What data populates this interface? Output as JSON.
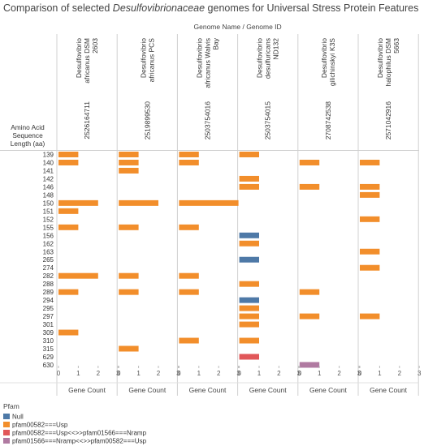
{
  "title": {
    "prefix": "Comparison of selected ",
    "italic": "Desulfovibrionaceae",
    "suffix": " genomes for Universal Stress Protein Features"
  },
  "colors": {
    "pfam00582===Usp": "#f28e2b",
    "Null": "#4e79a7",
    "pfam00582===Usp<<>>pfam01566===Nramp": "#e15759",
    "pfam01566===Nramp<<>>pfam00582===Usp": "#b07aa1"
  },
  "chart_data": {
    "type": "bar",
    "orientation": "horizontal",
    "column_header": "Genome Name  /  Genome ID",
    "row_header": [
      "Amino Acid",
      "Sequence",
      "Length (aa)"
    ],
    "categories": [
      "139",
      "140",
      "141",
      "142",
      "146",
      "148",
      "150",
      "151",
      "152",
      "155",
      "156",
      "162",
      "163",
      "265",
      "274",
      "282",
      "288",
      "289",
      "294",
      "295",
      "297",
      "301",
      "309",
      "310",
      "315",
      "629",
      "630"
    ],
    "xlabel": "Gene Count",
    "xlim": [
      0,
      3
    ],
    "xticks": [
      0,
      1,
      2,
      3
    ],
    "grid": false,
    "legend": {
      "title": "Pfam",
      "position": "bottom-left",
      "items": [
        "Null",
        "pfam00582===Usp",
        "pfam00582===Usp<<>>pfam01566===Nramp",
        "pfam01566===Nramp<<>>pfam00582===Usp"
      ]
    },
    "panels": [
      {
        "genome_name": [
          "Desulfovibrio",
          "africanus DSM",
          "2603"
        ],
        "genome_id": "2526164711",
        "bars": [
          {
            "length": "139",
            "value": 1,
            "pfam": "pfam00582===Usp"
          },
          {
            "length": "140",
            "value": 1,
            "pfam": "pfam00582===Usp"
          },
          {
            "length": "150",
            "value": 2,
            "pfam": "pfam00582===Usp"
          },
          {
            "length": "151",
            "value": 1,
            "pfam": "pfam00582===Usp"
          },
          {
            "length": "155",
            "value": 1,
            "pfam": "pfam00582===Usp"
          },
          {
            "length": "282",
            "value": 2,
            "pfam": "pfam00582===Usp"
          },
          {
            "length": "289",
            "value": 1,
            "pfam": "pfam00582===Usp"
          },
          {
            "length": "309",
            "value": 1,
            "pfam": "pfam00582===Usp"
          }
        ]
      },
      {
        "genome_name": [
          "Desulfovibrio",
          "africanus PCS"
        ],
        "genome_id": "2519899530",
        "bars": [
          {
            "length": "139",
            "value": 1,
            "pfam": "pfam00582===Usp"
          },
          {
            "length": "140",
            "value": 1,
            "pfam": "pfam00582===Usp"
          },
          {
            "length": "141",
            "value": 1,
            "pfam": "pfam00582===Usp"
          },
          {
            "length": "150",
            "value": 2,
            "pfam": "pfam00582===Usp"
          },
          {
            "length": "155",
            "value": 1,
            "pfam": "pfam00582===Usp"
          },
          {
            "length": "282",
            "value": 1,
            "pfam": "pfam00582===Usp"
          },
          {
            "length": "289",
            "value": 1,
            "pfam": "pfam00582===Usp"
          },
          {
            "length": "315",
            "value": 1,
            "pfam": "pfam00582===Usp"
          }
        ]
      },
      {
        "genome_name": [
          "Desulfovibrio",
          "africanus Walvis",
          "Bay"
        ],
        "genome_id": "2503754016",
        "bars": [
          {
            "length": "139",
            "value": 1,
            "pfam": "pfam00582===Usp"
          },
          {
            "length": "140",
            "value": 1,
            "pfam": "pfam00582===Usp"
          },
          {
            "length": "150",
            "value": 3,
            "pfam": "pfam00582===Usp"
          },
          {
            "length": "155",
            "value": 1,
            "pfam": "pfam00582===Usp"
          },
          {
            "length": "282",
            "value": 1,
            "pfam": "pfam00582===Usp"
          },
          {
            "length": "289",
            "value": 1,
            "pfam": "pfam00582===Usp"
          },
          {
            "length": "310",
            "value": 1,
            "pfam": "pfam00582===Usp"
          }
        ]
      },
      {
        "genome_name": [
          "Desulfovibrio",
          "desulfuricans",
          "ND132"
        ],
        "genome_id": "2503754015",
        "bars": [
          {
            "length": "139",
            "value": 1,
            "pfam": "pfam00582===Usp"
          },
          {
            "length": "142",
            "value": 1,
            "pfam": "pfam00582===Usp"
          },
          {
            "length": "146",
            "value": 1,
            "pfam": "pfam00582===Usp"
          },
          {
            "length": "156",
            "value": 1,
            "pfam": "Null"
          },
          {
            "length": "162",
            "value": 1,
            "pfam": "pfam00582===Usp"
          },
          {
            "length": "265",
            "value": 1,
            "pfam": "Null"
          },
          {
            "length": "288",
            "value": 1,
            "pfam": "pfam00582===Usp"
          },
          {
            "length": "294",
            "value": 1,
            "pfam": "Null"
          },
          {
            "length": "295",
            "value": 1,
            "pfam": "pfam00582===Usp"
          },
          {
            "length": "297",
            "value": 1,
            "pfam": "pfam00582===Usp"
          },
          {
            "length": "301",
            "value": 1,
            "pfam": "pfam00582===Usp"
          },
          {
            "length": "310",
            "value": 1,
            "pfam": "pfam00582===Usp"
          },
          {
            "length": "629",
            "value": 1,
            "pfam": "pfam00582===Usp<<>>pfam01566===Nramp"
          }
        ]
      },
      {
        "genome_name": [
          "Desulfovibrio",
          "gilichinskyi K3S"
        ],
        "genome_id": "2708742538",
        "bars": [
          {
            "length": "140",
            "value": 1,
            "pfam": "pfam00582===Usp"
          },
          {
            "length": "146",
            "value": 1,
            "pfam": "pfam00582===Usp"
          },
          {
            "length": "289",
            "value": 1,
            "pfam": "pfam00582===Usp"
          },
          {
            "length": "297",
            "value": 1,
            "pfam": "pfam00582===Usp"
          },
          {
            "length": "630",
            "value": 1,
            "pfam": "pfam01566===Nramp<<>>pfam00582===Usp"
          }
        ]
      },
      {
        "genome_name": [
          "Desulfovibrio",
          "halophilus DSM",
          "5663"
        ],
        "genome_id": "2571042916",
        "bars": [
          {
            "length": "140",
            "value": 1,
            "pfam": "pfam00582===Usp"
          },
          {
            "length": "146",
            "value": 1,
            "pfam": "pfam00582===Usp"
          },
          {
            "length": "148",
            "value": 1,
            "pfam": "pfam00582===Usp"
          },
          {
            "length": "152",
            "value": 1,
            "pfam": "pfam00582===Usp"
          },
          {
            "length": "163",
            "value": 1,
            "pfam": "pfam00582===Usp"
          },
          {
            "length": "274",
            "value": 1,
            "pfam": "pfam00582===Usp"
          },
          {
            "length": "297",
            "value": 1,
            "pfam": "pfam00582===Usp"
          }
        ]
      }
    ]
  }
}
